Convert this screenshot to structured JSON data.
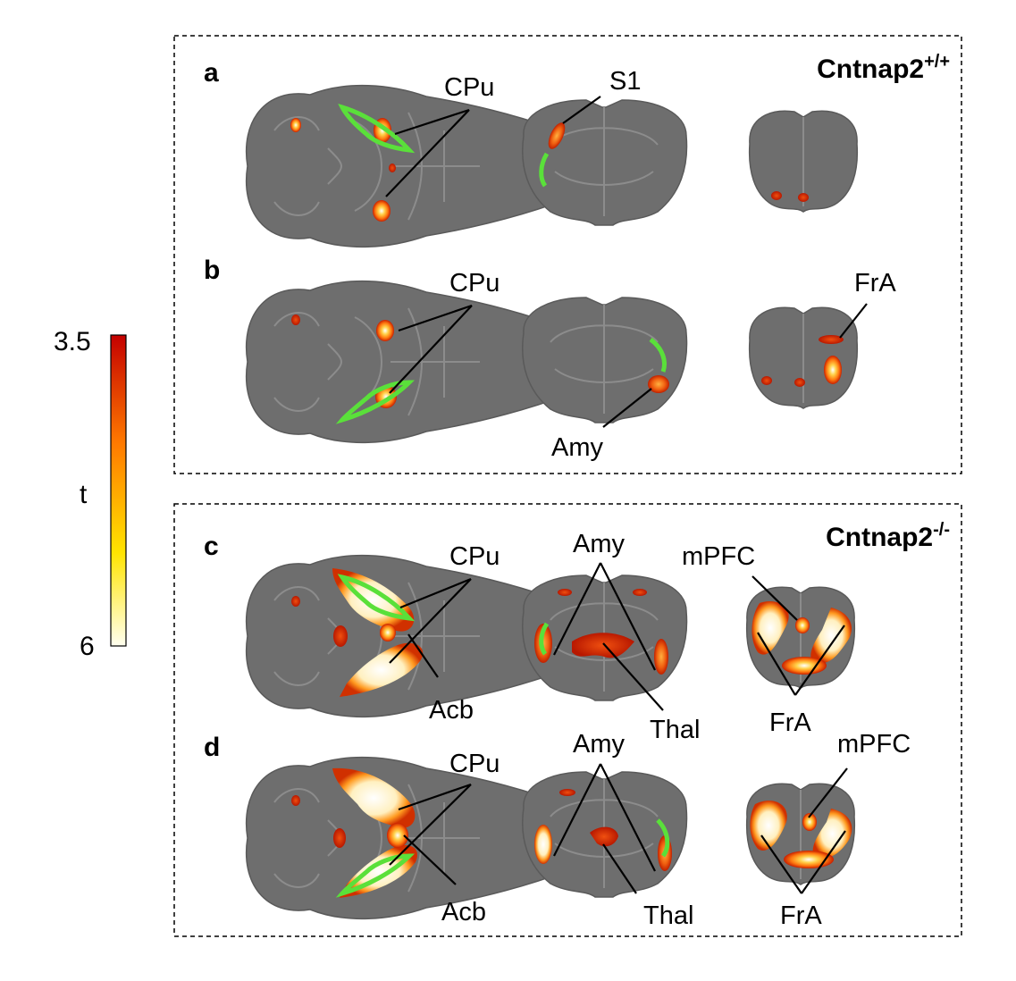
{
  "groups": [
    {
      "genotype_base": "Cntnap2",
      "genotype_sup": "+/+"
    },
    {
      "genotype_base": "Cntnap2",
      "genotype_sup": "-/-"
    }
  ],
  "panels": [
    {
      "letter": "a",
      "labels": [
        "CPu",
        "S1"
      ]
    },
    {
      "letter": "b",
      "labels": [
        "CPu",
        "Amy",
        "FrA"
      ]
    },
    {
      "letter": "c",
      "labels": [
        "CPu",
        "Acb",
        "Amy",
        "Thal",
        "mPFC",
        "FrA"
      ]
    },
    {
      "letter": "d",
      "labels": [
        "CPu",
        "Acb",
        "Amy",
        "Thal",
        "mPFC",
        "FrA"
      ]
    }
  ],
  "colorbar": {
    "label": "t",
    "max_label": "3.5",
    "min_label": "6",
    "colors": [
      "#c40000",
      "#ff7a00",
      "#ffe400",
      "#fffff0"
    ]
  }
}
